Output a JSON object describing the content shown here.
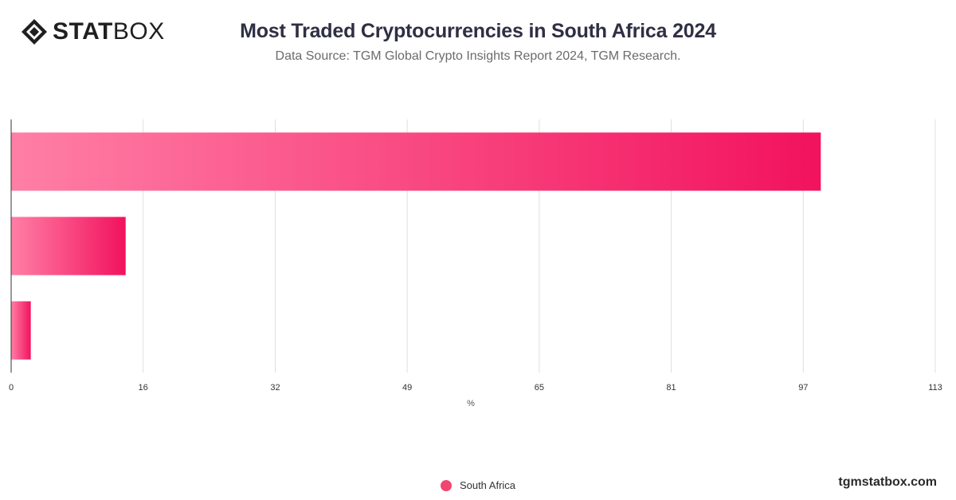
{
  "brand": {
    "logo_bold": "STAT",
    "logo_light": "BOX",
    "website": "tgmstatbox.com"
  },
  "chart_data": {
    "type": "bar",
    "orientation": "horizontal",
    "title": "Most Traded Cryptocurrencies in South Africa 2024",
    "subtitle": "Data Source: TGM Global Crypto Insights Report 2024, TGM Research.",
    "categories": [
      "",
      "",
      ""
    ],
    "series": [
      {
        "name": "South Africa",
        "values": [
          99,
          14,
          2.4
        ]
      }
    ],
    "xlabel": "%",
    "ylabel": "",
    "xlim": [
      0,
      113
    ],
    "x_ticks": [
      "0",
      "16",
      "32",
      "49",
      "65",
      "81",
      "97",
      "113"
    ],
    "x_tick_values": [
      0,
      16.14,
      32.29,
      48.43,
      64.57,
      80.71,
      96.86,
      113
    ],
    "grid": true,
    "legend": "bottom-center",
    "colors": {
      "bar_start": "#ff7fa6",
      "bar_end": "#f2125e",
      "grid": "#e0e0e0",
      "axis": "#333333"
    }
  }
}
